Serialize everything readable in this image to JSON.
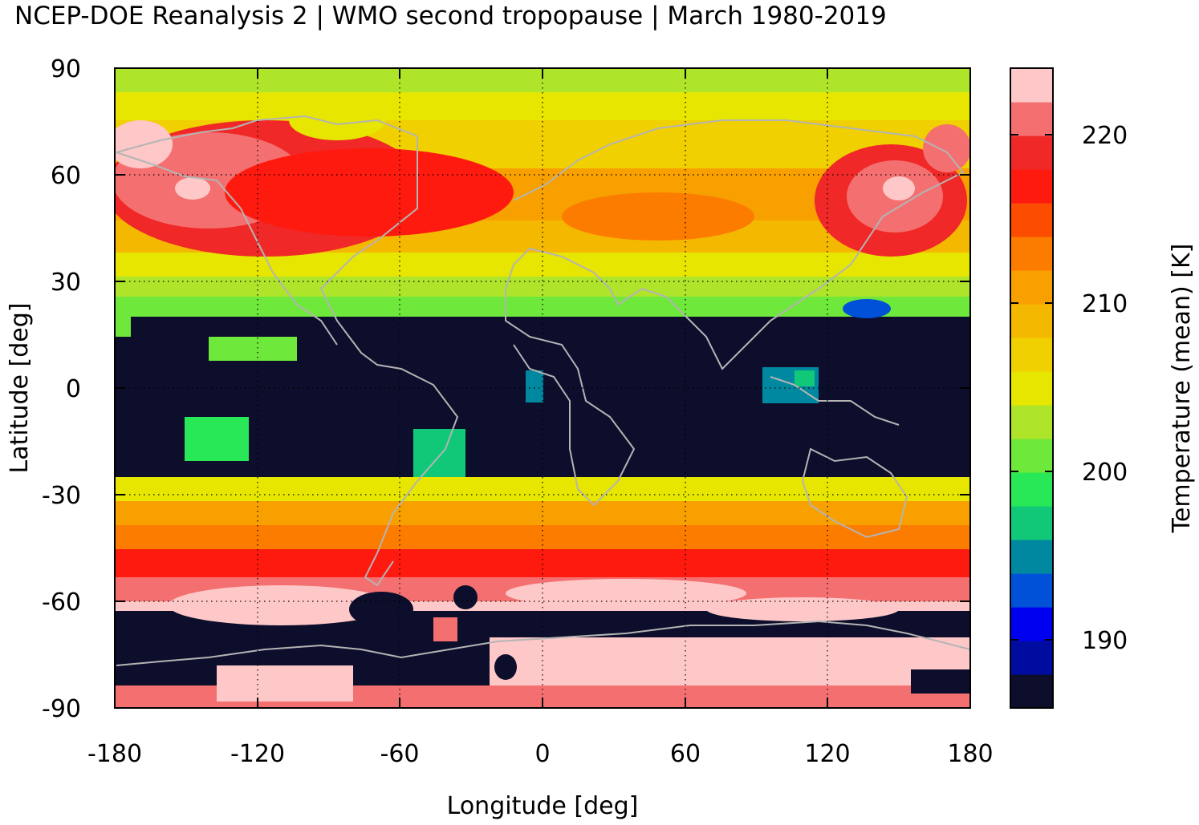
{
  "title": "NCEP-DOE Reanalysis 2 | WMO second tropopause | March 1980-2019",
  "map": {
    "projection": "equirectangular",
    "field": "Temperature (mean) [K]",
    "xlabel": "Longitude [deg]",
    "ylabel": "Latitude [deg]",
    "xlim": [
      -180,
      180
    ],
    "ylim": [
      -90,
      90
    ],
    "xticks": [
      "-180",
      "-120",
      "-60",
      "0",
      "60",
      "120",
      "180"
    ],
    "yticks": [
      "90",
      "60",
      "30",
      "0",
      "-30",
      "-60",
      "-90"
    ],
    "grid": "dotted",
    "coastline_color": "#b4b4b4",
    "missing_color": "#0d0d2c"
  },
  "colorbar": {
    "label": "Temperature (mean) [K]",
    "range": [
      185,
      223
    ],
    "ticks": [
      "220",
      "210",
      "200",
      "190"
    ],
    "colors_low_to_high": [
      "#0d0d2c",
      "#000ca0",
      "#0000f0",
      "#0050d8",
      "#0088a0",
      "#10c878",
      "#28e858",
      "#6ee83a",
      "#aee42a",
      "#e6e600",
      "#f0d000",
      "#f4b800",
      "#f8a000",
      "#fc7c00",
      "#fc4c00",
      "#ff1a10",
      "#f02828",
      "#f47070",
      "#ffc8c8"
    ]
  }
}
